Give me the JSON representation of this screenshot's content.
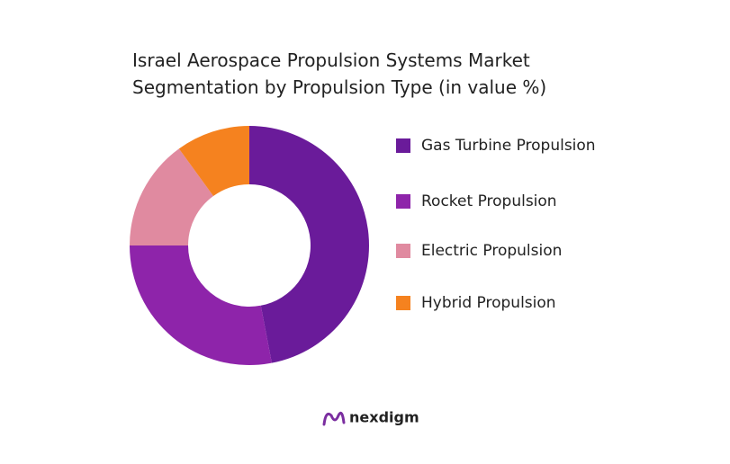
{
  "chart_data": {
    "type": "donut",
    "title": "Israel Aerospace Propulsion Systems Market Segmentation by Propulsion Type (in value %)",
    "categories": [
      "Gas Turbine Propulsion",
      "Rocket Propulsion",
      "Electric Propulsion",
      "Hybrid Propulsion"
    ],
    "values": [
      47,
      28,
      15,
      10
    ],
    "colors": [
      "#6a1b9a",
      "#8e24aa",
      "#e08aa0",
      "#f5821f"
    ],
    "legend": "right"
  },
  "brand": "nexdigm"
}
